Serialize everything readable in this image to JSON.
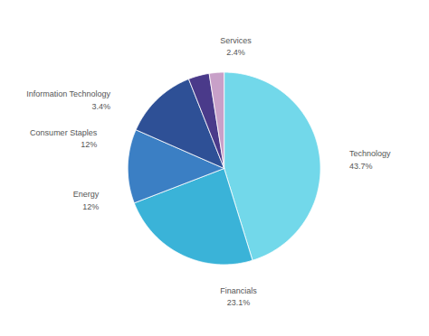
{
  "chart_data": {
    "type": "pie",
    "categories": [
      "Technology",
      "Financials",
      "Energy",
      "Consumer Staples",
      "Information Technology",
      "Services"
    ],
    "values": [
      43.7,
      23.1,
      12.0,
      12.0,
      3.4,
      2.4
    ],
    "value_labels": [
      "43.7%",
      "23.1%",
      "12%",
      "12%",
      "3.4%",
      "2.4%"
    ],
    "colors": [
      "#72d8ea",
      "#3ab3d8",
      "#3b7fc4",
      "#2e5096",
      "#4a3a8a",
      "#c8a0c8"
    ],
    "data_labels": true
  }
}
